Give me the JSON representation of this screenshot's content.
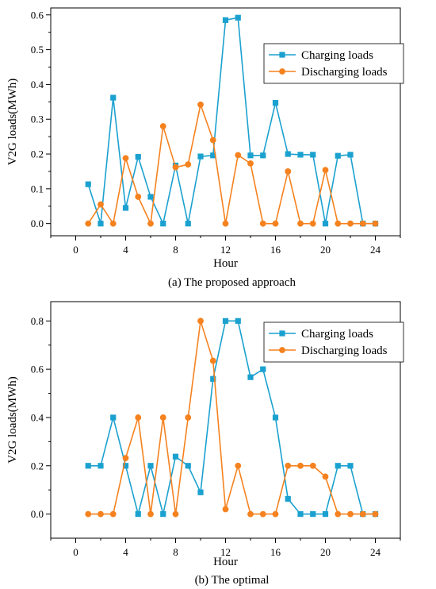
{
  "colors": {
    "charging": "#1ba1cf",
    "discharging": "#f5821f"
  },
  "chart_data": [
    {
      "type": "line",
      "caption": "(a)  The proposed approach",
      "xlabel": "Hour",
      "ylabel": "V2G loads(MWh)",
      "xlim": [
        -2,
        26
      ],
      "ylim": [
        -0.035,
        0.62
      ],
      "xticks": [
        0,
        4,
        8,
        12,
        16,
        20,
        24
      ],
      "xtick_labels": [
        "0",
        "4",
        "8",
        "12",
        "16",
        "20",
        "24"
      ],
      "yticks": [
        0.0,
        0.1,
        0.2,
        0.3,
        0.4,
        0.5,
        0.6
      ],
      "ytick_labels": [
        "0.0",
        "0.1",
        "0.2",
        "0.3",
        "0.4",
        "0.5",
        "0.6"
      ],
      "legend_position": "top-right",
      "grid": false,
      "x": [
        1,
        2,
        3,
        4,
        5,
        6,
        7,
        8,
        9,
        10,
        11,
        12,
        13,
        14,
        15,
        16,
        17,
        18,
        19,
        20,
        21,
        22,
        23,
        24
      ],
      "series": [
        {
          "name": "Charging loads",
          "marker": "square",
          "color_key": "charging",
          "values": [
            0.113,
            0.0,
            0.362,
            0.045,
            0.192,
            0.077,
            0.0,
            0.167,
            0.0,
            0.193,
            0.196,
            0.585,
            0.592,
            0.196,
            0.196,
            0.347,
            0.2,
            0.198,
            0.198,
            0.0,
            0.195,
            0.198,
            0.0,
            0.0
          ]
        },
        {
          "name": "Discharging loads",
          "marker": "circle",
          "color_key": "discharging",
          "values": [
            0.0,
            0.055,
            0.0,
            0.188,
            0.077,
            0.0,
            0.28,
            0.162,
            0.17,
            0.342,
            0.24,
            0.0,
            0.197,
            0.173,
            0.0,
            0.0,
            0.15,
            0.0,
            0.0,
            0.154,
            0.0,
            0.0,
            0.0,
            0.0
          ]
        }
      ]
    },
    {
      "type": "line",
      "caption": "(b)  The optimal",
      "xlabel": "Hour",
      "ylabel": "V2G loads(MWh)",
      "xlim": [
        -2,
        26
      ],
      "ylim": [
        -0.1,
        0.88
      ],
      "xticks": [
        0,
        4,
        8,
        12,
        16,
        20,
        24
      ],
      "xtick_labels": [
        "0",
        "4",
        "8",
        "12",
        "16",
        "20",
        "24"
      ],
      "yticks": [
        0.0,
        0.2,
        0.4,
        0.6,
        0.8
      ],
      "ytick_labels": [
        "0.0",
        "0.2",
        "0.4",
        "0.6",
        "0.8"
      ],
      "legend_position": "top-right",
      "grid": false,
      "x": [
        1,
        2,
        3,
        4,
        5,
        6,
        7,
        8,
        9,
        10,
        11,
        12,
        13,
        14,
        15,
        16,
        17,
        18,
        19,
        20,
        21,
        22,
        23,
        24
      ],
      "series": [
        {
          "name": "Charging loads",
          "marker": "square",
          "color_key": "charging",
          "values": [
            0.2,
            0.2,
            0.4,
            0.2,
            0.0,
            0.2,
            0.0,
            0.238,
            0.2,
            0.09,
            0.56,
            0.8,
            0.8,
            0.567,
            0.6,
            0.4,
            0.063,
            0.0,
            0.0,
            0.0,
            0.2,
            0.2,
            0.0,
            0.0
          ]
        },
        {
          "name": "Discharging loads",
          "marker": "circle",
          "color_key": "discharging",
          "values": [
            0.0,
            0.0,
            0.0,
            0.232,
            0.4,
            0.0,
            0.4,
            0.0,
            0.4,
            0.8,
            0.635,
            0.02,
            0.2,
            0.0,
            0.0,
            0.0,
            0.2,
            0.2,
            0.2,
            0.155,
            0.0,
            0.0,
            0.0,
            0.0
          ]
        }
      ]
    }
  ]
}
